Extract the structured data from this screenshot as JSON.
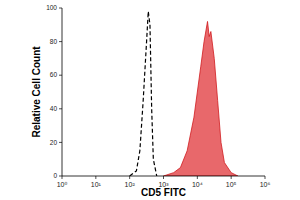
{
  "chart_data": {
    "type": "line",
    "x_label": "CD5 FITC",
    "y_label": "Relative Cell Count",
    "log": "x",
    "xlim": [
      1,
      1000000
    ],
    "xticks": [
      {
        "value": 1,
        "label": "10⁰"
      },
      {
        "value": 10,
        "label": "10¹"
      },
      {
        "value": 100,
        "label": "10²"
      },
      {
        "value": 1000,
        "label": "10³"
      },
      {
        "value": 10000,
        "label": "10⁴"
      },
      {
        "value": 100000,
        "label": "10⁵"
      },
      {
        "value": 1000000,
        "label": "10⁶"
      }
    ],
    "ylim": [
      0,
      100
    ],
    "yticks": [
      0,
      20,
      40,
      60,
      80,
      100
    ],
    "series": [
      {
        "type": "line",
        "line_style": "dashed",
        "color": "#000000",
        "x": [
          100,
          158,
          200,
          251,
          316,
          355,
          398,
          447,
          501,
          631
        ],
        "values": [
          0,
          3,
          15,
          45,
          80,
          98,
          90,
          40,
          10,
          0
        ]
      },
      {
        "type": "area",
        "color": "#e8686b",
        "x": [
          1000,
          2000,
          3160,
          5000,
          7940,
          10000,
          12600,
          15800,
          20000,
          22400,
          25100,
          31600,
          39800,
          50100,
          63100,
          100000,
          158000
        ],
        "values": [
          0,
          2,
          5,
          15,
          35,
          50,
          65,
          80,
          92,
          83,
          86,
          70,
          45,
          20,
          8,
          2,
          0
        ]
      }
    ]
  }
}
